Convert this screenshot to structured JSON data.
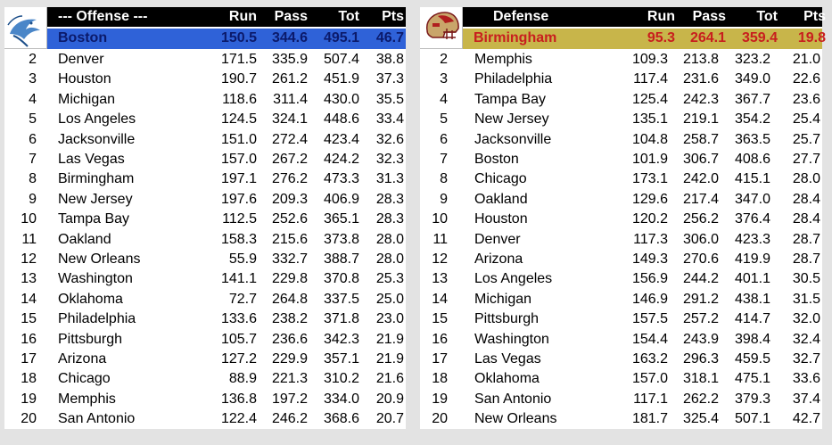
{
  "offense": {
    "title": "--- Offense ---",
    "headers": {
      "run": "Run",
      "pass": "Pass",
      "tot": "Tot",
      "pts": "Pts"
    },
    "logo_icon": "dolphin-logo-icon",
    "top": {
      "team": "Boston",
      "run": "150.5",
      "pass": "344.6",
      "tot": "495.1",
      "pts": "46.7"
    },
    "top_colors": {
      "background": "#2f62d8",
      "text": "#0b1a6b"
    },
    "rows": [
      {
        "rank": "2",
        "team": "Denver",
        "run": "171.5",
        "pass": "335.9",
        "tot": "507.4",
        "pts": "38.8"
      },
      {
        "rank": "3",
        "team": "Houston",
        "run": "190.7",
        "pass": "261.2",
        "tot": "451.9",
        "pts": "37.3"
      },
      {
        "rank": "4",
        "team": "Michigan",
        "run": "118.6",
        "pass": "311.4",
        "tot": "430.0",
        "pts": "35.5"
      },
      {
        "rank": "5",
        "team": "Los Angeles",
        "run": "124.5",
        "pass": "324.1",
        "tot": "448.6",
        "pts": "33.4"
      },
      {
        "rank": "6",
        "team": "Jacksonville",
        "run": "151.0",
        "pass": "272.4",
        "tot": "423.4",
        "pts": "32.6"
      },
      {
        "rank": "7",
        "team": "Las Vegas",
        "run": "157.0",
        "pass": "267.2",
        "tot": "424.2",
        "pts": "32.3"
      },
      {
        "rank": "8",
        "team": "Birmingham",
        "run": "197.1",
        "pass": "276.2",
        "tot": "473.3",
        "pts": "31.3"
      },
      {
        "rank": "9",
        "team": "New Jersey",
        "run": "197.6",
        "pass": "209.3",
        "tot": "406.9",
        "pts": "28.3"
      },
      {
        "rank": "10",
        "team": "Tampa Bay",
        "run": "112.5",
        "pass": "252.6",
        "tot": "365.1",
        "pts": "28.3"
      },
      {
        "rank": "11",
        "team": "Oakland",
        "run": "158.3",
        "pass": "215.6",
        "tot": "373.8",
        "pts": "28.0"
      },
      {
        "rank": "12",
        "team": "New Orleans",
        "run": "55.9",
        "pass": "332.7",
        "tot": "388.7",
        "pts": "28.0"
      },
      {
        "rank": "13",
        "team": "Washington",
        "run": "141.1",
        "pass": "229.8",
        "tot": "370.8",
        "pts": "25.3"
      },
      {
        "rank": "14",
        "team": "Oklahoma",
        "run": "72.7",
        "pass": "264.8",
        "tot": "337.5",
        "pts": "25.0"
      },
      {
        "rank": "15",
        "team": "Philadelphia",
        "run": "133.6",
        "pass": "238.2",
        "tot": "371.8",
        "pts": "23.0"
      },
      {
        "rank": "16",
        "team": "Pittsburgh",
        "run": "105.7",
        "pass": "236.6",
        "tot": "342.3",
        "pts": "21.9"
      },
      {
        "rank": "17",
        "team": "Arizona",
        "run": "127.2",
        "pass": "229.9",
        "tot": "357.1",
        "pts": "21.9"
      },
      {
        "rank": "18",
        "team": "Chicago",
        "run": "88.9",
        "pass": "221.3",
        "tot": "310.2",
        "pts": "21.6"
      },
      {
        "rank": "19",
        "team": "Memphis",
        "run": "136.8",
        "pass": "197.2",
        "tot": "334.0",
        "pts": "20.9"
      },
      {
        "rank": "20",
        "team": "San Antonio",
        "run": "122.4",
        "pass": "246.2",
        "tot": "368.6",
        "pts": "20.7"
      }
    ]
  },
  "defense": {
    "title": "Defense",
    "headers": {
      "run": "Run",
      "pass": "Pass",
      "tot": "Tot",
      "pts": "Pts"
    },
    "logo_icon": "helmet-logo-icon",
    "top": {
      "team": "Birmingham",
      "run": "95.3",
      "pass": "264.1",
      "tot": "359.4",
      "pts": "19.8"
    },
    "top_colors": {
      "background": "#c8b54a",
      "text": "#c81e1e"
    },
    "rows": [
      {
        "rank": "2",
        "team": "Memphis",
        "run": "109.3",
        "pass": "213.8",
        "tot": "323.2",
        "pts": "21.0"
      },
      {
        "rank": "3",
        "team": "Philadelphia",
        "run": "117.4",
        "pass": "231.6",
        "tot": "349.0",
        "pts": "22.6"
      },
      {
        "rank": "4",
        "team": "Tampa Bay",
        "run": "125.4",
        "pass": "242.3",
        "tot": "367.7",
        "pts": "23.6"
      },
      {
        "rank": "5",
        "team": "New Jersey",
        "run": "135.1",
        "pass": "219.1",
        "tot": "354.2",
        "pts": "25.4"
      },
      {
        "rank": "6",
        "team": "Jacksonville",
        "run": "104.8",
        "pass": "258.7",
        "tot": "363.5",
        "pts": "25.7"
      },
      {
        "rank": "7",
        "team": "Boston",
        "run": "101.9",
        "pass": "306.7",
        "tot": "408.6",
        "pts": "27.7"
      },
      {
        "rank": "8",
        "team": "Chicago",
        "run": "173.1",
        "pass": "242.0",
        "tot": "415.1",
        "pts": "28.0"
      },
      {
        "rank": "9",
        "team": "Oakland",
        "run": "129.6",
        "pass": "217.4",
        "tot": "347.0",
        "pts": "28.4"
      },
      {
        "rank": "10",
        "team": "Houston",
        "run": "120.2",
        "pass": "256.2",
        "tot": "376.4",
        "pts": "28.4"
      },
      {
        "rank": "11",
        "team": "Denver",
        "run": "117.3",
        "pass": "306.0",
        "tot": "423.3",
        "pts": "28.7"
      },
      {
        "rank": "12",
        "team": "Arizona",
        "run": "149.3",
        "pass": "270.6",
        "tot": "419.9",
        "pts": "28.7"
      },
      {
        "rank": "13",
        "team": "Los Angeles",
        "run": "156.9",
        "pass": "244.2",
        "tot": "401.1",
        "pts": "30.5"
      },
      {
        "rank": "14",
        "team": "Michigan",
        "run": "146.9",
        "pass": "291.2",
        "tot": "438.1",
        "pts": "31.5"
      },
      {
        "rank": "15",
        "team": "Pittsburgh",
        "run": "157.5",
        "pass": "257.2",
        "tot": "414.7",
        "pts": "32.0"
      },
      {
        "rank": "16",
        "team": "Washington",
        "run": "154.4",
        "pass": "243.9",
        "tot": "398.4",
        "pts": "32.4"
      },
      {
        "rank": "17",
        "team": "Las Vegas",
        "run": "163.2",
        "pass": "296.3",
        "tot": "459.5",
        "pts": "32.7"
      },
      {
        "rank": "18",
        "team": "Oklahoma",
        "run": "157.0",
        "pass": "318.1",
        "tot": "475.1",
        "pts": "33.6"
      },
      {
        "rank": "19",
        "team": "San Antonio",
        "run": "117.1",
        "pass": "262.2",
        "tot": "379.3",
        "pts": "37.4"
      },
      {
        "rank": "20",
        "team": "New Orleans",
        "run": "181.7",
        "pass": "325.4",
        "tot": "507.1",
        "pts": "42.7"
      }
    ]
  }
}
